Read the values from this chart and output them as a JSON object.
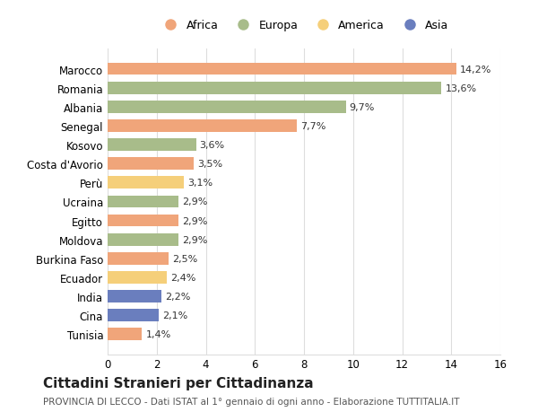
{
  "countries": [
    "Marocco",
    "Romania",
    "Albania",
    "Senegal",
    "Kosovo",
    "Costa d'Avorio",
    "Perù",
    "Ucraina",
    "Egitto",
    "Moldova",
    "Burkina Faso",
    "Ecuador",
    "India",
    "Cina",
    "Tunisia"
  ],
  "values": [
    14.2,
    13.6,
    9.7,
    7.7,
    3.6,
    3.5,
    3.1,
    2.9,
    2.9,
    2.9,
    2.5,
    2.4,
    2.2,
    2.1,
    1.4
  ],
  "labels": [
    "14,2%",
    "13,6%",
    "9,7%",
    "7,7%",
    "3,6%",
    "3,5%",
    "3,1%",
    "2,9%",
    "2,9%",
    "2,9%",
    "2,5%",
    "2,4%",
    "2,2%",
    "2,1%",
    "1,4%"
  ],
  "continents": [
    "Africa",
    "Europa",
    "Europa",
    "Africa",
    "Europa",
    "Africa",
    "America",
    "Europa",
    "Africa",
    "Europa",
    "Africa",
    "America",
    "Asia",
    "Asia",
    "Africa"
  ],
  "colors": {
    "Africa": "#F0A57A",
    "Europa": "#A8BC8A",
    "America": "#F5CF7A",
    "Asia": "#6A7EBE"
  },
  "legend_order": [
    "Africa",
    "Europa",
    "America",
    "Asia"
  ],
  "title": "Cittadini Stranieri per Cittadinanza",
  "subtitle": "PROVINCIA DI LECCO - Dati ISTAT al 1° gennaio di ogni anno - Elaborazione TUTTITALIA.IT",
  "xlim": [
    0,
    16
  ],
  "xticks": [
    0,
    2,
    4,
    6,
    8,
    10,
    12,
    14,
    16
  ],
  "background_color": "#ffffff",
  "grid_color": "#dddddd"
}
